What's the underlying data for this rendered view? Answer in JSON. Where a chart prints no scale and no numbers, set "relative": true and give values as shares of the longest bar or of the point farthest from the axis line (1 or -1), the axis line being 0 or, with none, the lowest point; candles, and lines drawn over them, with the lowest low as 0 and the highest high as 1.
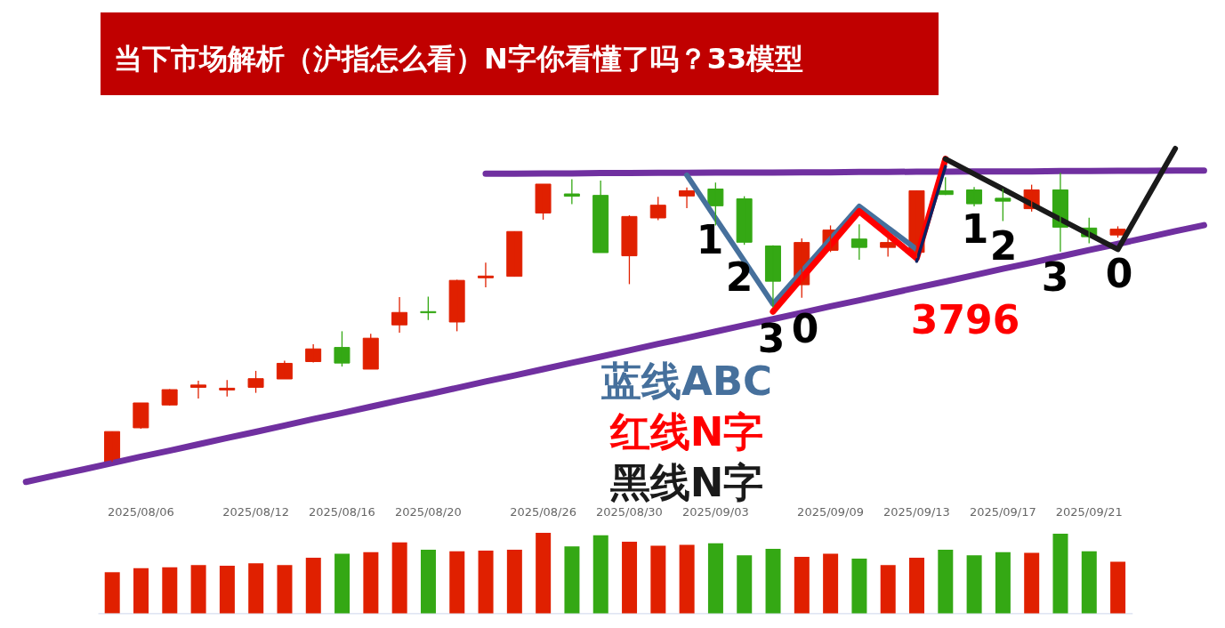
{
  "chart_data": [
    {
      "type": "candlestick",
      "title": "当下市场解析（沪指怎么看）N字你看懂了吗？33模型",
      "relative": true,
      "tick_labels": "x",
      "categories": [
        null,
        null,
        null,
        null,
        "2025/08/06",
        null,
        null,
        null,
        "2025/08/12",
        null,
        null,
        "2025/08/16",
        null,
        null,
        "2025/08/20",
        null,
        null,
        null,
        "2025/08/26",
        null,
        null,
        "2025/08/30",
        null,
        null,
        "2025/09/03",
        null,
        null,
        null,
        "2025/09/09",
        null,
        null,
        "2025/09/13",
        null,
        null,
        "2025/09/17",
        null,
        null,
        "2025/09/21",
        null,
        null,
        null,
        null
      ],
      "ohlc": [
        null,
        null,
        null,
        [
          0,
          0.105,
          0,
          0.105
        ],
        [
          0.118,
          0.204,
          0.115,
          0.204
        ],
        [
          0.197,
          0.252,
          0.195,
          0.25
        ],
        [
          0.258,
          0.281,
          0.219,
          0.266
        ],
        [
          0.249,
          0.283,
          0.226,
          0.255
        ],
        [
          0.258,
          0.315,
          0.239,
          0.288
        ],
        [
          0.287,
          0.35,
          0.287,
          0.341
        ],
        [
          0.347,
          0.407,
          0.344,
          0.391
        ],
        [
          0.396,
          0.452,
          0.33,
          0.342
        ],
        [
          0.321,
          0.443,
          0.321,
          0.428
        ],
        [
          0.474,
          0.57,
          0.447,
          0.517
        ],
        [
          0.52,
          0.572,
          0.491,
          0.516
        ],
        [
          0.484,
          0.63,
          0.452,
          0.628
        ],
        [
          0.637,
          0.689,
          0.604,
          0.643
        ],
        [
          0.642,
          0.797,
          0.642,
          0.797
        ],
        [
          0.861,
          0.961,
          0.838,
          0.961
        ],
        [
          0.927,
          0.978,
          0.892,
          0.919
        ],
        [
          0.922,
          0.973,
          0.724,
          0.724
        ],
        [
          0.713,
          0.853,
          0.615,
          0.849
        ],
        [
          0.844,
          0.917,
          0.836,
          0.888
        ],
        [
          0.92,
          0.949,
          0.878,
          0.938
        ],
        [
          0.944,
          0.966,
          0.818,
          0.886
        ],
        [
          0.91,
          0.919,
          0.751,
          0.76
        ],
        [
          0.747,
          0.749,
          0.535,
          0.625
        ],
        [
          0.613,
          0.773,
          0.568,
          0.759
        ],
        [
          0.732,
          0.818,
          0.726,
          0.802
        ],
        [
          0.771,
          0.822,
          0.699,
          0.742
        ],
        [
          0.742,
          0.782,
          0.71,
          0.759
        ],
        [
          0.725,
          0.938,
          0.705,
          0.938
        ],
        [
          0.938,
          0.985,
          0.923,
          0.925
        ],
        [
          0.941,
          0.951,
          0.884,
          0.893
        ],
        [
          0.912,
          0.945,
          0.833,
          0.902
        ],
        [
          0.876,
          0.959,
          0.866,
          0.941
        ],
        [
          0.941,
          1,
          0.727,
          0.812
        ],
        [
          0.809,
          0.845,
          0.756,
          0.779
        ],
        [
          0.785,
          0.815,
          0.776,
          0.805
        ],
        null,
        null,
        null
      ],
      "colors": [
        null,
        null,
        null,
        "#e02000",
        "#e02000",
        "#e02000",
        "#e02000",
        "#e02000",
        "#e02000",
        "#e02000",
        "#e02000",
        "#34a814",
        "#e02000",
        "#e02000",
        "#34a814",
        "#e02000",
        "#e02000",
        "#e02000",
        "#e02000",
        "#34a814",
        "#34a814",
        "#e02000",
        "#e02000",
        "#e02000",
        "#34a814",
        "#34a814",
        "#34a814",
        "#e02000",
        "#e02000",
        "#34a814",
        "#e02000",
        "#e02000",
        "#34a814",
        "#34a814",
        "#34a814",
        "#e02000",
        "#34a814",
        "#34a814",
        "#e02000",
        null,
        null,
        null
      ],
      "series": [
        {
          "type": "line",
          "color": "#7030a0",
          "values": [
            -0.069,
            -0.047,
            -0.026,
            -0.004,
            0.018,
            0.039,
            0.061,
            0.083,
            0.104,
            0.126,
            0.148,
            0.169,
            0.191,
            0.213,
            0.234,
            0.256,
            0.278,
            0.299,
            0.321,
            0.343,
            0.364,
            0.386,
            0.408,
            0.429,
            0.451,
            0.473,
            0.494,
            0.516,
            0.538,
            0.559,
            0.581,
            0.603,
            0.624,
            0.646,
            0.668,
            0.689,
            0.711,
            0.733,
            0.754,
            0.776,
            0.798,
            0.819
          ]
        },
        {
          "type": "line",
          "color": "#7030a0",
          "values": [
            null,
            null,
            null,
            null,
            null,
            null,
            null,
            null,
            null,
            null,
            null,
            null,
            null,
            null,
            null,
            null,
            0.997,
            0.997,
            0.998,
            0.998,
            0.999,
            0.999,
            1,
            1,
            1.001,
            1.001,
            1.001,
            1.002,
            1.002,
            1.003,
            1.003,
            1.004,
            1.004,
            1.005,
            1.005,
            1.005,
            1.006,
            1.006,
            1.007,
            1.007,
            1.008,
            1.008
          ]
        },
        {
          "type": "line",
          "name": "蓝线ABC",
          "color": "#46709c",
          "values": [
            null,
            null,
            null,
            null,
            null,
            null,
            null,
            null,
            null,
            null,
            null,
            null,
            null,
            null,
            null,
            null,
            null,
            null,
            null,
            null,
            null,
            null,
            null,
            0.992,
            0.843,
            0.695,
            0.546,
            0.659,
            0.771,
            0.884,
            0.81,
            0.735,
            null,
            null,
            null,
            null,
            null,
            null,
            null,
            null,
            null,
            null
          ]
        },
        {
          "type": "line",
          "name": "红线N字",
          "color": "#ff0000",
          "values": [
            null,
            null,
            null,
            null,
            null,
            null,
            null,
            null,
            null,
            null,
            null,
            null,
            null,
            null,
            null,
            null,
            null,
            null,
            null,
            null,
            null,
            null,
            null,
            null,
            null,
            null,
            0.52,
            0.636,
            0.751,
            0.867,
            0.786,
            0.705,
            1.048,
            null,
            null,
            null,
            null,
            null,
            null,
            null,
            null,
            null
          ]
        },
        {
          "type": "line",
          "color": "#0c2262",
          "values": [
            null,
            null,
            null,
            null,
            null,
            null,
            null,
            null,
            null,
            null,
            null,
            null,
            null,
            null,
            null,
            null,
            null,
            null,
            null,
            null,
            null,
            null,
            null,
            null,
            null,
            null,
            null,
            null,
            null,
            null,
            null,
            0.694,
            1.022,
            null,
            null,
            null,
            null,
            null,
            null,
            null,
            null,
            null
          ]
        },
        {
          "type": "line",
          "name": "黑线N字",
          "color": "#1a1a1a",
          "values": [
            null,
            null,
            null,
            null,
            null,
            null,
            null,
            null,
            null,
            null,
            null,
            null,
            null,
            null,
            null,
            null,
            null,
            null,
            null,
            null,
            null,
            null,
            null,
            null,
            null,
            null,
            null,
            null,
            null,
            null,
            null,
            null,
            1.048,
            0.996,
            0.944,
            0.891,
            0.839,
            0.787,
            0.735,
            0.91,
            1.084,
            null
          ]
        }
      ],
      "line_style": "solid",
      "annotations": [
        "1",
        "2",
        "3",
        "0",
        "3796",
        "1",
        "2",
        "3",
        "0"
      ]
    },
    {
      "type": "bar",
      "relative": true,
      "categories": [
        null,
        null,
        null,
        null,
        null,
        null,
        null,
        null,
        null,
        null,
        null,
        null,
        null,
        null,
        null,
        null,
        null,
        null,
        null,
        null,
        null,
        null,
        null,
        null,
        null,
        null,
        null,
        null,
        null,
        null,
        null,
        null,
        null,
        null,
        null,
        null
      ],
      "values": [
        0.51,
        0.56,
        0.57,
        0.6,
        0.59,
        0.62,
        0.6,
        0.69,
        0.74,
        0.76,
        0.88,
        0.79,
        0.77,
        0.78,
        0.79,
        1,
        0.83,
        0.97,
        0.89,
        0.84,
        0.85,
        0.87,
        0.72,
        0.8,
        0.7,
        0.74,
        0.68,
        0.6,
        0.69,
        0.79,
        0.72,
        0.76,
        0.75,
        0.99,
        0.77,
        0.64
      ],
      "colors": [
        "#e02000",
        "#e02000",
        "#e02000",
        "#e02000",
        "#e02000",
        "#e02000",
        "#e02000",
        "#e02000",
        "#34a814",
        "#e02000",
        "#e02000",
        "#34a814",
        "#e02000",
        "#e02000",
        "#e02000",
        "#e02000",
        "#34a814",
        "#34a814",
        "#e02000",
        "#e02000",
        "#e02000",
        "#34a814",
        "#34a814",
        "#34a814",
        "#e02000",
        "#e02000",
        "#34a814",
        "#e02000",
        "#e02000",
        "#34a814",
        "#34a814",
        "#34a814",
        "#e02000",
        "#34a814",
        "#34a814",
        "#e02000"
      ]
    }
  ]
}
